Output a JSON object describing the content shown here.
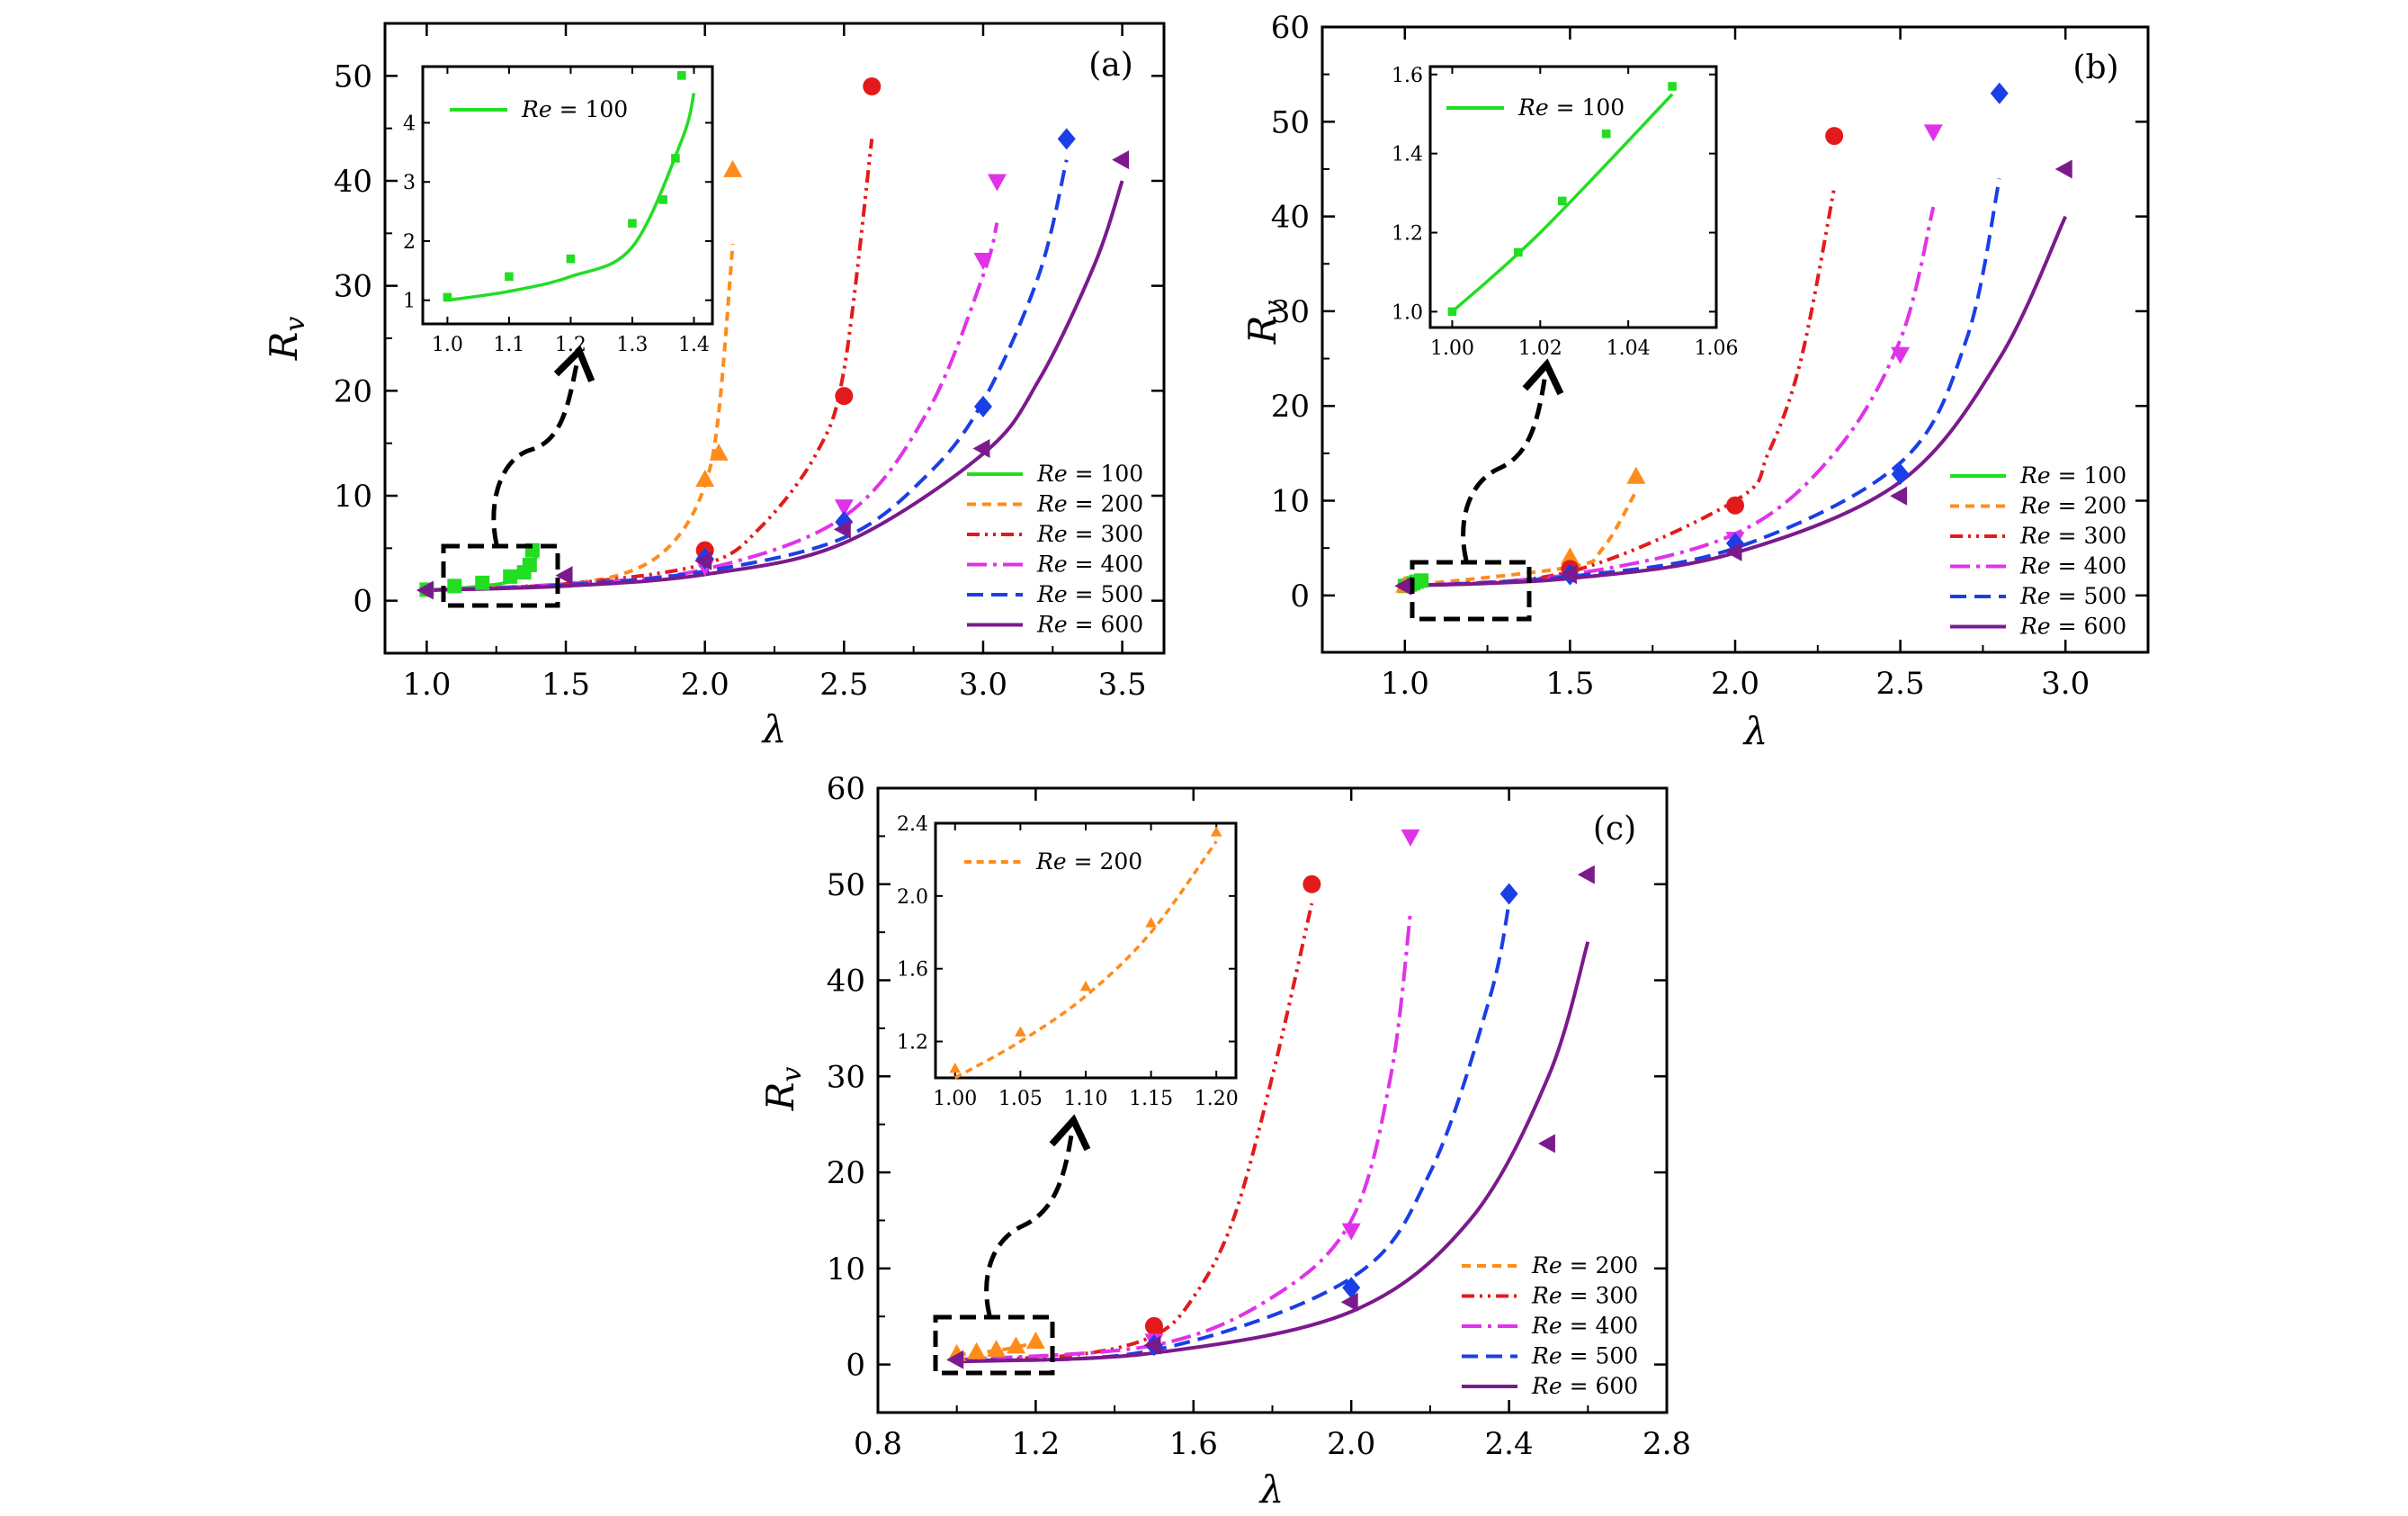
{
  "chart_data": [
    {
      "panel": "(a)",
      "type": "line",
      "xlabel": "λ",
      "ylabel": "R_v",
      "xlim": [
        0.85,
        3.65
      ],
      "ylim": [
        -5,
        55
      ],
      "xticks": [
        1.0,
        1.5,
        2.0,
        2.5,
        3.0,
        3.5
      ],
      "xtick_labels": [
        "1.0",
        "1.5",
        "2.0",
        "2.5",
        "3.0",
        "3.5"
      ],
      "yticks": [
        0,
        10,
        20,
        30,
        40,
        50
      ],
      "ytick_labels": [
        "0",
        "10",
        "20",
        "30",
        "40",
        "50"
      ],
      "legend_position": "bottom-right",
      "series": [
        {
          "name": "Re = 100",
          "label": "Re",
          "value": "= 100",
          "color": "#22dd22",
          "dash": "",
          "marker": "square",
          "curve": [
            [
              1.0,
              1.0
            ],
            [
              1.1,
              1.15
            ],
            [
              1.2,
              1.4
            ],
            [
              1.3,
              1.9
            ],
            [
              1.38,
              3.7
            ],
            [
              1.4,
              4.5
            ]
          ],
          "points": [
            [
              1.0,
              1.05
            ],
            [
              1.1,
              1.4
            ],
            [
              1.2,
              1.7
            ],
            [
              1.3,
              2.3
            ],
            [
              1.35,
              2.7
            ],
            [
              1.37,
              3.4
            ],
            [
              1.38,
              4.8
            ]
          ]
        },
        {
          "name": "Re = 200",
          "label": "Re",
          "value": "= 200",
          "color": "#ff8c1a",
          "dash": "10,7",
          "marker": "triangle-up",
          "curve": [
            [
              1.0,
              1.0
            ],
            [
              1.5,
              1.6
            ],
            [
              1.75,
              3.0
            ],
            [
              1.9,
              6.0
            ],
            [
              2.0,
              11.0
            ],
            [
              2.05,
              18.0
            ],
            [
              2.1,
              34.0
            ]
          ],
          "points": [
            [
              2.0,
              11.5
            ],
            [
              2.05,
              14.0
            ],
            [
              2.1,
              41.0
            ]
          ]
        },
        {
          "name": "Re = 300",
          "label": "Re",
          "value": "= 300",
          "color": "#e31a1c",
          "dash": "14,6,3,6,3,6",
          "marker": "circle",
          "curve": [
            [
              1.0,
              1.0
            ],
            [
              1.5,
              1.6
            ],
            [
              2.0,
              3.5
            ],
            [
              2.2,
              7.0
            ],
            [
              2.4,
              14.0
            ],
            [
              2.5,
              22.0
            ],
            [
              2.6,
              44.0
            ]
          ],
          "points": [
            [
              2.0,
              4.8
            ],
            [
              2.5,
              19.5
            ],
            [
              2.6,
              49.0
            ]
          ]
        },
        {
          "name": "Re = 400",
          "label": "Re",
          "value": "= 400",
          "color": "#e033e8",
          "dash": "22,7,4,7",
          "marker": "triangle-down",
          "curve": [
            [
              1.0,
              1.0
            ],
            [
              1.5,
              1.6
            ],
            [
              2.0,
              3.0
            ],
            [
              2.5,
              8.0
            ],
            [
              2.8,
              18.0
            ],
            [
              3.0,
              31.0
            ],
            [
              3.05,
              36.0
            ]
          ],
          "points": [
            [
              2.0,
              3.3
            ],
            [
              2.5,
              9.0
            ],
            [
              3.0,
              32.5
            ],
            [
              3.05,
              40.0
            ]
          ]
        },
        {
          "name": "Re = 500",
          "label": "Re",
          "value": "= 500",
          "color": "#1a3fe6",
          "dash": "18,9",
          "marker": "diamond",
          "curve": [
            [
              1.0,
              1.0
            ],
            [
              1.5,
              1.5
            ],
            [
              2.0,
              2.8
            ],
            [
              2.5,
              6.0
            ],
            [
              2.8,
              12.0
            ],
            [
              3.0,
              19.0
            ],
            [
              3.2,
              31.0
            ],
            [
              3.3,
              42.0
            ]
          ],
          "points": [
            [
              2.0,
              4.0
            ],
            [
              2.5,
              7.5
            ],
            [
              3.0,
              18.5
            ],
            [
              3.3,
              44.0
            ]
          ]
        },
        {
          "name": "Re = 600",
          "label": "Re",
          "value": "= 600",
          "color": "#7b1a8c",
          "dash": "",
          "marker": "triangle-left",
          "curve": [
            [
              1.0,
              1.0
            ],
            [
              1.5,
              1.4
            ],
            [
              2.0,
              2.5
            ],
            [
              2.5,
              5.5
            ],
            [
              3.0,
              14.0
            ],
            [
              3.2,
              21.0
            ],
            [
              3.4,
              32.0
            ],
            [
              3.5,
              40.0
            ]
          ],
          "points": [
            [
              1.0,
              1.0
            ],
            [
              1.5,
              2.4
            ],
            [
              2.0,
              3.8
            ],
            [
              2.5,
              6.8
            ],
            [
              3.0,
              14.5
            ],
            [
              3.5,
              42.0
            ]
          ]
        }
      ],
      "inset": {
        "xlim": [
          0.96,
          1.43
        ],
        "ylim": [
          0.6,
          4.95
        ],
        "xticks": [
          1.0,
          1.1,
          1.2,
          1.3,
          1.4
        ],
        "xtick_labels": [
          "1.0",
          "1.1",
          "1.2",
          "1.3",
          "1.4"
        ],
        "yticks": [
          1,
          2,
          3,
          4
        ],
        "ytick_labels": [
          "1",
          "2",
          "3",
          "4"
        ],
        "series_index": 0
      }
    },
    {
      "panel": "(b)",
      "type": "line",
      "xlabel": "λ",
      "ylabel": "R_v",
      "xlim": [
        0.75,
        3.25
      ],
      "ylim": [
        -6,
        60
      ],
      "xticks": [
        1.0,
        1.5,
        2.0,
        2.5,
        3.0
      ],
      "xtick_labels": [
        "1.0",
        "1.5",
        "2.0",
        "2.5",
        "3.0"
      ],
      "yticks": [
        0,
        10,
        20,
        30,
        40,
        50,
        60
      ],
      "ytick_labels": [
        "0",
        "10",
        "20",
        "30",
        "40",
        "50",
        "60"
      ],
      "legend_position": "bottom-right",
      "series": [
        {
          "name": "Re = 100",
          "label": "Re",
          "value": "= 100",
          "color": "#22dd22",
          "dash": "",
          "marker": "square",
          "curve": [
            [
              1.0,
              1.0
            ],
            [
              1.02,
              1.2
            ],
            [
              1.05,
              1.55
            ]
          ],
          "points": [
            [
              1.0,
              1.0
            ],
            [
              1.015,
              1.15
            ],
            [
              1.025,
              1.28
            ],
            [
              1.035,
              1.45
            ],
            [
              1.05,
              1.57
            ]
          ]
        },
        {
          "name": "Re = 200",
          "label": "Re",
          "value": "= 200",
          "color": "#ff8c1a",
          "dash": "10,7",
          "marker": "triangle-up",
          "curve": [
            [
              1.0,
              1.0
            ],
            [
              1.5,
              3.0
            ],
            [
              1.6,
              5.0
            ],
            [
              1.7,
              11.0
            ]
          ],
          "points": [
            [
              1.0,
              1.0
            ],
            [
              1.5,
              4.0
            ],
            [
              1.7,
              12.5
            ]
          ]
        },
        {
          "name": "Re = 300",
          "label": "Re",
          "value": "= 300",
          "color": "#e31a1c",
          "dash": "14,6,3,6,3,6",
          "marker": "circle",
          "curve": [
            [
              1.0,
              1.0
            ],
            [
              1.5,
              2.5
            ],
            [
              2.0,
              10.0
            ],
            [
              2.1,
              15.0
            ],
            [
              2.2,
              25.0
            ],
            [
              2.3,
              43.0
            ]
          ],
          "points": [
            [
              1.5,
              2.8
            ],
            [
              2.0,
              9.5
            ],
            [
              2.3,
              48.5
            ]
          ]
        },
        {
          "name": "Re = 400",
          "label": "Re",
          "value": "= 400",
          "color": "#e033e8",
          "dash": "22,7,4,7",
          "marker": "triangle-down",
          "curve": [
            [
              1.0,
              1.0
            ],
            [
              1.5,
              2.2
            ],
            [
              2.0,
              6.5
            ],
            [
              2.3,
              15.0
            ],
            [
              2.5,
              27.0
            ],
            [
              2.6,
              41.0
            ]
          ],
          "points": [
            [
              2.0,
              6.0
            ],
            [
              2.5,
              25.5
            ],
            [
              2.6,
              49.0
            ]
          ]
        },
        {
          "name": "Re = 500",
          "label": "Re",
          "value": "= 500",
          "color": "#1a3fe6",
          "dash": "18,9",
          "marker": "diamond",
          "curve": [
            [
              1.0,
              1.0
            ],
            [
              1.5,
              2.0
            ],
            [
              2.0,
              5.0
            ],
            [
              2.5,
              14.0
            ],
            [
              2.7,
              27.0
            ],
            [
              2.8,
              44.0
            ]
          ],
          "points": [
            [
              1.5,
              2.2
            ],
            [
              2.0,
              5.5
            ],
            [
              2.5,
              12.8
            ],
            [
              2.8,
              53.0
            ]
          ]
        },
        {
          "name": "Re = 600",
          "label": "Re",
          "value": "= 600",
          "color": "#7b1a8c",
          "dash": "",
          "marker": "triangle-left",
          "curve": [
            [
              1.0,
              1.0
            ],
            [
              1.5,
              1.8
            ],
            [
              2.0,
              4.5
            ],
            [
              2.5,
              12.0
            ],
            [
              2.8,
              25.0
            ],
            [
              3.0,
              40.0
            ]
          ],
          "points": [
            [
              1.0,
              1.0
            ],
            [
              1.5,
              2.2
            ],
            [
              2.0,
              4.6
            ],
            [
              2.5,
              10.5
            ],
            [
              3.0,
              45.0
            ]
          ]
        }
      ],
      "inset": {
        "xlim": [
          0.995,
          1.06
        ],
        "ylim": [
          0.96,
          1.62
        ],
        "xticks": [
          1.0,
          1.02,
          1.04,
          1.06
        ],
        "xtick_labels": [
          "1.00",
          "1.02",
          "1.04",
          "1.06"
        ],
        "yticks": [
          1.0,
          1.2,
          1.4,
          1.6
        ],
        "ytick_labels": [
          "1.0",
          "1.2",
          "1.4",
          "1.6"
        ],
        "series_index": 0
      }
    },
    {
      "panel": "(c)",
      "type": "line",
      "xlabel": "λ",
      "ylabel": "R_v",
      "xlim": [
        0.8,
        2.8
      ],
      "ylim": [
        -5,
        60
      ],
      "xticks": [
        0.8,
        1.2,
        1.6,
        2.0,
        2.4,
        2.8
      ],
      "xtick_labels": [
        "0.8",
        "1.2",
        "1.6",
        "2.0",
        "2.4",
        "2.8"
      ],
      "yticks": [
        0,
        10,
        20,
        30,
        40,
        50,
        60
      ],
      "ytick_labels": [
        "0",
        "10",
        "20",
        "30",
        "40",
        "50",
        "60"
      ],
      "legend_position": "bottom-right",
      "series": [
        {
          "name": "Re = 200",
          "label": "Re",
          "value": "= 200",
          "color": "#ff8c1a",
          "dash": "10,7",
          "marker": "triangle-up",
          "curve": [
            [
              1.0,
              1.0
            ],
            [
              1.05,
              1.2
            ],
            [
              1.1,
              1.45
            ],
            [
              1.15,
              1.8
            ],
            [
              1.2,
              2.3
            ]
          ],
          "points": [
            [
              1.0,
              1.05
            ],
            [
              1.05,
              1.25
            ],
            [
              1.1,
              1.5
            ],
            [
              1.15,
              1.85
            ],
            [
              1.2,
              2.35
            ]
          ]
        },
        {
          "name": "Re = 300",
          "label": "Re",
          "value": "= 300",
          "color": "#e31a1c",
          "dash": "14,6,3,6,3,6",
          "marker": "circle",
          "curve": [
            [
              1.0,
              0.5
            ],
            [
              1.3,
              1.0
            ],
            [
              1.5,
              3.0
            ],
            [
              1.6,
              7.0
            ],
            [
              1.7,
              15.0
            ],
            [
              1.8,
              30.0
            ],
            [
              1.9,
              48.0
            ]
          ],
          "points": [
            [
              1.5,
              4.0
            ],
            [
              1.9,
              50.0
            ]
          ]
        },
        {
          "name": "Re = 400",
          "label": "Re",
          "value": "= 400",
          "color": "#e033e8",
          "dash": "22,7,4,7",
          "marker": "triangle-down",
          "curve": [
            [
              1.0,
              0.5
            ],
            [
              1.5,
              2.0
            ],
            [
              1.8,
              7.0
            ],
            [
              2.0,
              15.0
            ],
            [
              2.1,
              30.0
            ],
            [
              2.15,
              47.0
            ]
          ],
          "points": [
            [
              1.5,
              2.5
            ],
            [
              2.0,
              14.0
            ],
            [
              2.15,
              55.0
            ]
          ]
        },
        {
          "name": "Re = 500",
          "label": "Re",
          "value": "= 500",
          "color": "#1a3fe6",
          "dash": "18,9",
          "marker": "diamond",
          "curve": [
            [
              1.0,
              0.4
            ],
            [
              1.5,
              1.5
            ],
            [
              2.0,
              9.0
            ],
            [
              2.2,
              20.0
            ],
            [
              2.35,
              38.0
            ],
            [
              2.4,
              48.0
            ]
          ],
          "points": [
            [
              1.5,
              2.0
            ],
            [
              2.0,
              8.0
            ],
            [
              2.4,
              49.0
            ]
          ]
        },
        {
          "name": "Re = 600",
          "label": "Re",
          "value": "= 600",
          "color": "#7b1a8c",
          "dash": "",
          "marker": "triangle-left",
          "curve": [
            [
              1.0,
              0.3
            ],
            [
              1.5,
              1.2
            ],
            [
              2.0,
              5.5
            ],
            [
              2.3,
              15.0
            ],
            [
              2.5,
              30.0
            ],
            [
              2.6,
              44.0
            ]
          ],
          "points": [
            [
              1.0,
              0.5
            ],
            [
              1.5,
              2.0
            ],
            [
              2.0,
              6.5
            ],
            [
              2.5,
              23.0
            ],
            [
              2.6,
              51.0
            ]
          ]
        }
      ],
      "inset": {
        "xlim": [
          0.985,
          1.215
        ],
        "ylim": [
          1.0,
          2.4
        ],
        "xticks": [
          1.0,
          1.05,
          1.1,
          1.15,
          1.2
        ],
        "xtick_labels": [
          "1.00",
          "1.05",
          "1.10",
          "1.15",
          "1.20"
        ],
        "yticks": [
          1.2,
          1.6,
          2.0,
          2.4
        ],
        "ytick_labels": [
          "1.2",
          "1.6",
          "2.0",
          "2.4"
        ],
        "series_index": 0
      }
    }
  ]
}
